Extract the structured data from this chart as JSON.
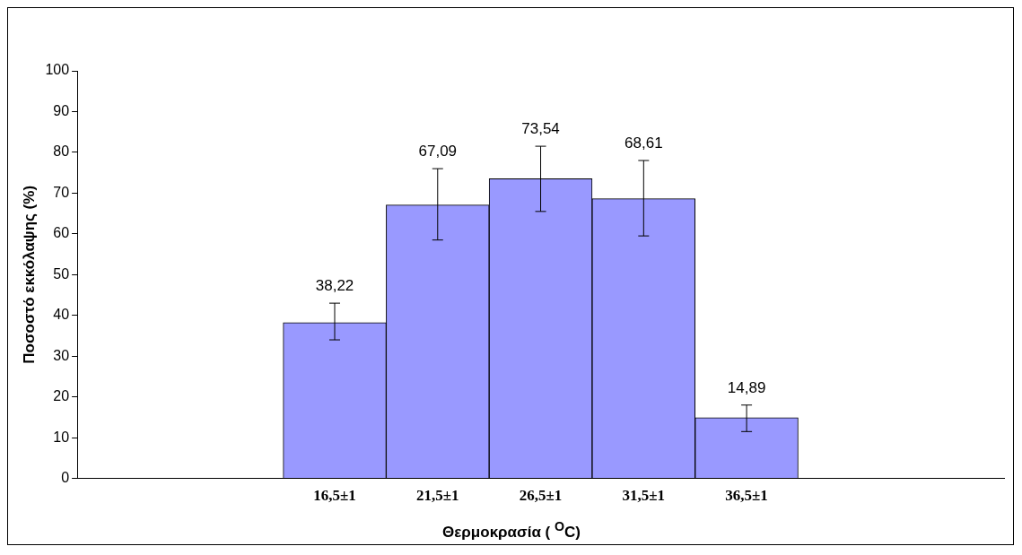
{
  "chart_data": {
    "type": "bar",
    "xlabel": "Θερμοκρασία ( $^{O}$C)",
    "ylabel": "Ποσοστό εκκόλαψης (%)",
    "categories": [
      null,
      null,
      "16,5±1",
      "21,5±1",
      "26,5±1",
      "31,5±1",
      "36,5±1",
      null,
      null
    ],
    "values": [
      null,
      null,
      38.22,
      67.09,
      73.54,
      68.61,
      14.89,
      null,
      null
    ],
    "color": "#9999ff",
    "errors": [
      null,
      null,
      [
        34,
        43
      ],
      [
        58.5,
        76
      ],
      [
        65.5,
        81.5
      ],
      [
        59.5,
        78
      ],
      [
        11.5,
        18
      ],
      null,
      null
    ],
    "value_labels": [
      null,
      null,
      "38,22",
      "67,09",
      "73,54",
      "68,61",
      "14,89",
      null,
      null
    ],
    "ylim": [
      0,
      100
    ],
    "yticks": [
      0,
      10,
      20,
      30,
      40,
      50,
      60,
      70,
      80,
      90,
      100
    ],
    "grid": false,
    "legend": false
  }
}
